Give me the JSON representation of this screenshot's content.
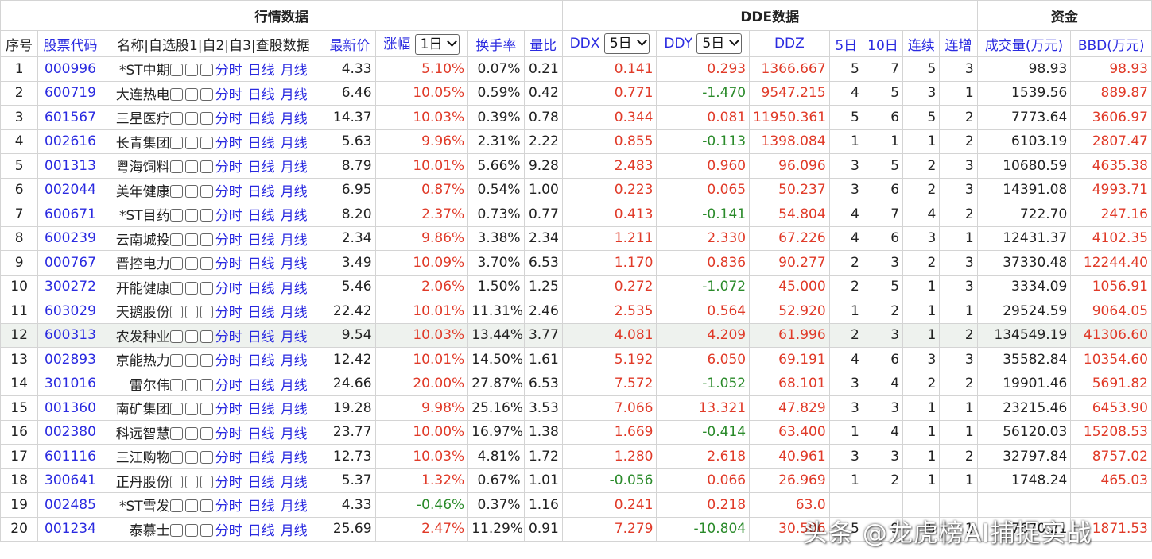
{
  "groups": {
    "quote": "行情数据",
    "dde": "DDE数据",
    "fund": "资金"
  },
  "headers": {
    "seq": "序号",
    "code": "股票代码",
    "name": "名称|自选股1|自2|自3|查股数据",
    "price": "最新价",
    "change": "涨幅",
    "change_sel": "1日",
    "turnover": "换手率",
    "vol_ratio": "量比",
    "ddx": "DDX",
    "ddx_sel": "5日",
    "ddy": "DDY",
    "ddy_sel": "5日",
    "ddz": "DDZ",
    "d5": "5日",
    "d10": "10日",
    "cont": "连续",
    "inc": "连增",
    "amount": "成交量(万元)",
    "bbd": "BBD(万元)"
  },
  "links": {
    "fenshi": "分时",
    "rixian": "日线",
    "yuexian": "月线"
  },
  "rows": [
    {
      "seq": "1",
      "code": "000996",
      "name": "*ST中期",
      "price": "4.33",
      "change": "5.10%",
      "turnover": "0.07%",
      "vr": "0.21",
      "ddx": "0.141",
      "ddy": "0.293",
      "ddz": "1366.667",
      "d5": "5",
      "d10": "7",
      "cont": "5",
      "inc": "3",
      "amount": "98.93",
      "bbd": "98.93"
    },
    {
      "seq": "2",
      "code": "600719",
      "name": "大连热电",
      "price": "6.46",
      "change": "10.05%",
      "turnover": "0.59%",
      "vr": "0.42",
      "ddx": "0.771",
      "ddy": "-1.470",
      "ddz": "9547.215",
      "d5": "4",
      "d10": "5",
      "cont": "3",
      "inc": "1",
      "amount": "1539.56",
      "bbd": "889.87"
    },
    {
      "seq": "3",
      "code": "601567",
      "name": "三星医疗",
      "price": "14.37",
      "change": "10.03%",
      "turnover": "0.39%",
      "vr": "0.78",
      "ddx": "0.344",
      "ddy": "0.081",
      "ddz": "11950.361",
      "d5": "5",
      "d10": "6",
      "cont": "5",
      "inc": "2",
      "amount": "7773.64",
      "bbd": "3606.97"
    },
    {
      "seq": "4",
      "code": "002616",
      "name": "长青集团",
      "price": "5.63",
      "change": "9.96%",
      "turnover": "2.31%",
      "vr": "2.22",
      "ddx": "0.855",
      "ddy": "-0.113",
      "ddz": "1398.084",
      "d5": "1",
      "d10": "1",
      "cont": "1",
      "inc": "2",
      "amount": "6103.19",
      "bbd": "2807.47"
    },
    {
      "seq": "5",
      "code": "001313",
      "name": "粤海饲料",
      "price": "8.79",
      "change": "10.01%",
      "turnover": "5.66%",
      "vr": "9.28",
      "ddx": "2.483",
      "ddy": "0.960",
      "ddz": "96.096",
      "d5": "3",
      "d10": "5",
      "cont": "2",
      "inc": "3",
      "amount": "10680.59",
      "bbd": "4635.38"
    },
    {
      "seq": "6",
      "code": "002044",
      "name": "美年健康",
      "price": "6.95",
      "change": "0.87%",
      "turnover": "0.54%",
      "vr": "1.00",
      "ddx": "0.223",
      "ddy": "0.065",
      "ddz": "50.237",
      "d5": "3",
      "d10": "6",
      "cont": "2",
      "inc": "3",
      "amount": "14391.08",
      "bbd": "4993.71"
    },
    {
      "seq": "7",
      "code": "600671",
      "name": "*ST目药",
      "price": "8.20",
      "change": "2.37%",
      "turnover": "0.73%",
      "vr": "0.77",
      "ddx": "0.413",
      "ddy": "-0.141",
      "ddz": "54.804",
      "d5": "4",
      "d10": "7",
      "cont": "4",
      "inc": "2",
      "amount": "722.70",
      "bbd": "247.16"
    },
    {
      "seq": "8",
      "code": "600239",
      "name": "云南城投",
      "price": "2.34",
      "change": "9.86%",
      "turnover": "3.38%",
      "vr": "2.34",
      "ddx": "1.211",
      "ddy": "2.330",
      "ddz": "67.226",
      "d5": "4",
      "d10": "6",
      "cont": "3",
      "inc": "1",
      "amount": "12431.37",
      "bbd": "4102.35"
    },
    {
      "seq": "9",
      "code": "000767",
      "name": "晋控电力",
      "price": "3.49",
      "change": "10.09%",
      "turnover": "3.70%",
      "vr": "6.53",
      "ddx": "1.170",
      "ddy": "0.836",
      "ddz": "90.277",
      "d5": "2",
      "d10": "3",
      "cont": "2",
      "inc": "3",
      "amount": "37330.48",
      "bbd": "12244.40"
    },
    {
      "seq": "10",
      "code": "300272",
      "name": "开能健康",
      "price": "5.46",
      "change": "2.06%",
      "turnover": "1.50%",
      "vr": "1.25",
      "ddx": "0.272",
      "ddy": "-1.072",
      "ddz": "45.000",
      "d5": "2",
      "d10": "5",
      "cont": "1",
      "inc": "3",
      "amount": "3334.09",
      "bbd": "1056.91"
    },
    {
      "seq": "11",
      "code": "603029",
      "name": "天鹅股份",
      "price": "22.42",
      "change": "10.01%",
      "turnover": "11.31%",
      "vr": "2.46",
      "ddx": "2.535",
      "ddy": "0.564",
      "ddz": "52.920",
      "d5": "1",
      "d10": "2",
      "cont": "1",
      "inc": "1",
      "amount": "29524.59",
      "bbd": "9064.05"
    },
    {
      "seq": "12",
      "code": "600313",
      "name": "农发种业",
      "price": "9.54",
      "change": "10.03%",
      "turnover": "13.44%",
      "vr": "3.77",
      "ddx": "4.081",
      "ddy": "4.209",
      "ddz": "61.996",
      "d5": "2",
      "d10": "3",
      "cont": "1",
      "inc": "2",
      "amount": "134549.19",
      "bbd": "41306.60"
    },
    {
      "seq": "13",
      "code": "002893",
      "name": "京能热力",
      "price": "12.42",
      "change": "10.01%",
      "turnover": "14.50%",
      "vr": "1.61",
      "ddx": "5.192",
      "ddy": "6.050",
      "ddz": "69.191",
      "d5": "4",
      "d10": "6",
      "cont": "3",
      "inc": "3",
      "amount": "35582.84",
      "bbd": "10354.60"
    },
    {
      "seq": "14",
      "code": "301016",
      "name": "雷尔伟",
      "price": "24.66",
      "change": "20.00%",
      "turnover": "27.87%",
      "vr": "6.53",
      "ddx": "7.572",
      "ddy": "-1.052",
      "ddz": "68.101",
      "d5": "3",
      "d10": "4",
      "cont": "2",
      "inc": "2",
      "amount": "19901.46",
      "bbd": "5691.82"
    },
    {
      "seq": "15",
      "code": "001360",
      "name": "南矿集团",
      "price": "19.28",
      "change": "9.98%",
      "turnover": "25.16%",
      "vr": "3.53",
      "ddx": "7.066",
      "ddy": "13.321",
      "ddz": "47.829",
      "d5": "3",
      "d10": "3",
      "cont": "1",
      "inc": "1",
      "amount": "23215.46",
      "bbd": "6453.90"
    },
    {
      "seq": "16",
      "code": "002380",
      "name": "科远智慧",
      "price": "23.77",
      "change": "10.00%",
      "turnover": "16.97%",
      "vr": "1.38",
      "ddx": "1.669",
      "ddy": "-0.414",
      "ddz": "63.400",
      "d5": "1",
      "d10": "4",
      "cont": "1",
      "inc": "1",
      "amount": "56120.03",
      "bbd": "15208.53"
    },
    {
      "seq": "17",
      "code": "601116",
      "name": "三江购物",
      "price": "12.73",
      "change": "10.03%",
      "turnover": "4.81%",
      "vr": "1.72",
      "ddx": "1.280",
      "ddy": "2.618",
      "ddz": "40.961",
      "d5": "3",
      "d10": "3",
      "cont": "1",
      "inc": "2",
      "amount": "32797.84",
      "bbd": "8757.02"
    },
    {
      "seq": "18",
      "code": "300641",
      "name": "正丹股份",
      "price": "5.37",
      "change": "1.32%",
      "turnover": "0.67%",
      "vr": "1.01",
      "ddx": "-0.056",
      "ddy": "0.066",
      "ddz": "26.969",
      "d5": "1",
      "d10": "2",
      "cont": "1",
      "inc": "1",
      "amount": "1748.24",
      "bbd": "465.03"
    },
    {
      "seq": "19",
      "code": "002485",
      "name": "*ST雪发",
      "price": "4.33",
      "change": "-0.46%",
      "turnover": "0.37%",
      "vr": "1.16",
      "ddx": "0.241",
      "ddy": "0.218",
      "ddz": "63.0",
      "d5": "",
      "d10": "",
      "cont": "",
      "inc": "",
      "amount": "",
      "bbd": ""
    },
    {
      "seq": "20",
      "code": "001234",
      "name": "泰慕士",
      "price": "25.69",
      "change": "2.47%",
      "turnover": "11.29%",
      "vr": "0.91",
      "ddx": "7.279",
      "ddy": "-10.804",
      "ddz": "30.506",
      "d5": "5",
      "d10": "9",
      "cont": "5",
      "inc": "1",
      "amount": "7670.21",
      "bbd": "1871.53"
    }
  ],
  "watermark": "头条 @龙虎榜AI捕捉实战",
  "colors": {
    "link": "#2a2ae0",
    "up": "#e03a28",
    "down": "#2a8a2a",
    "highlight_row": "#eef2ee"
  }
}
